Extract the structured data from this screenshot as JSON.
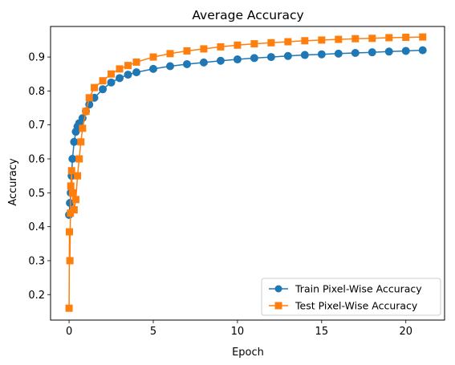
{
  "chart_data": {
    "type": "line",
    "title": "Average Accuracy",
    "xlabel": "Epoch",
    "ylabel": "Accuracy",
    "xlim": [
      -1.1,
      22.3
    ],
    "ylim": [
      0.125,
      0.99
    ],
    "xticks": [
      0,
      5,
      10,
      15,
      20
    ],
    "yticks": [
      0.2,
      0.3,
      0.4,
      0.5,
      0.6,
      0.7,
      0.8,
      0.9
    ],
    "grid": false,
    "legend_position": "lower-right",
    "series": [
      {
        "name": "Train Pixel-Wise Accuracy",
        "color": "#1f77b4",
        "marker": "circle",
        "x": [
          0,
          0.05,
          0.1,
          0.15,
          0.2,
          0.3,
          0.4,
          0.5,
          0.6,
          0.8,
          1.0,
          1.2,
          1.5,
          2.0,
          2.5,
          3.0,
          3.5,
          4.0,
          5.0,
          6.0,
          7.0,
          8.0,
          9.0,
          10.0,
          11.0,
          12.0,
          13.0,
          14.0,
          15.0,
          16.0,
          17.0,
          18.0,
          19.0,
          20.0,
          21.0
        ],
        "y": [
          0.435,
          0.47,
          0.5,
          0.55,
          0.6,
          0.65,
          0.68,
          0.695,
          0.705,
          0.72,
          0.74,
          0.76,
          0.78,
          0.805,
          0.825,
          0.838,
          0.848,
          0.855,
          0.865,
          0.873,
          0.879,
          0.884,
          0.889,
          0.893,
          0.897,
          0.9,
          0.903,
          0.906,
          0.908,
          0.91,
          0.912,
          0.914,
          0.916,
          0.918,
          0.92
        ]
      },
      {
        "name": "Test Pixel-Wise Accuracy",
        "color": "#ff7f0e",
        "marker": "square",
        "x": [
          0,
          0.02,
          0.05,
          0.08,
          0.1,
          0.15,
          0.2,
          0.3,
          0.4,
          0.5,
          0.6,
          0.7,
          0.8,
          1.0,
          1.2,
          1.5,
          2.0,
          2.5,
          3.0,
          3.5,
          4.0,
          5.0,
          6.0,
          7.0,
          8.0,
          9.0,
          10.0,
          11.0,
          12.0,
          13.0,
          14.0,
          15.0,
          16.0,
          17.0,
          18.0,
          19.0,
          20.0,
          21.0
        ],
        "y": [
          0.16,
          0.385,
          0.3,
          0.44,
          0.52,
          0.565,
          0.5,
          0.45,
          0.48,
          0.55,
          0.6,
          0.65,
          0.69,
          0.74,
          0.78,
          0.81,
          0.83,
          0.85,
          0.865,
          0.875,
          0.885,
          0.9,
          0.91,
          0.918,
          0.924,
          0.93,
          0.935,
          0.939,
          0.942,
          0.945,
          0.948,
          0.95,
          0.952,
          0.954,
          0.955,
          0.957,
          0.958,
          0.959
        ]
      }
    ]
  }
}
